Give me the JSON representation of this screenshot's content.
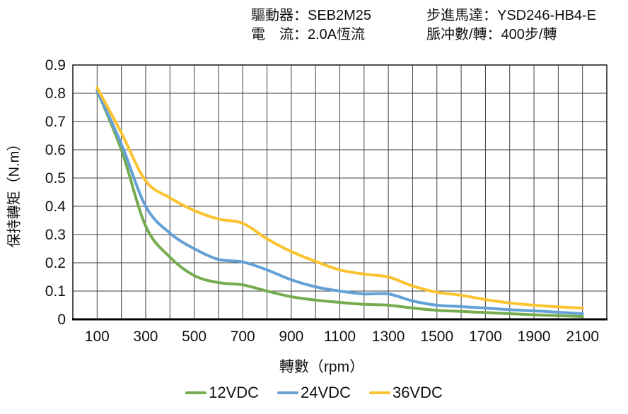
{
  "header": {
    "left_column": [
      {
        "label": "驅動器：",
        "value": "SEB2M25"
      },
      {
        "label": "電　流：",
        "value": "2.0A恆流"
      }
    ],
    "right_column": [
      {
        "label": "步進馬達：",
        "value": "YSD246-HB4-E"
      },
      {
        "label": "脈冲數/轉：",
        "value": "400步/轉"
      }
    ]
  },
  "chart_data": {
    "type": "line",
    "title": "",
    "xlabel": "轉數（rpm）",
    "ylabel": "保持轉矩（N.m）",
    "x": [
      100,
      200,
      300,
      400,
      500,
      600,
      700,
      800,
      900,
      1000,
      1100,
      1200,
      1300,
      1400,
      1500,
      1600,
      1700,
      1800,
      1900,
      2000,
      2100
    ],
    "series": [
      {
        "name": "12VDC",
        "color": "#76AB4F",
        "values": [
          0.81,
          0.6,
          0.33,
          0.22,
          0.155,
          0.13,
          0.122,
          0.1,
          0.08,
          0.068,
          0.06,
          0.053,
          0.05,
          0.04,
          0.032,
          0.028,
          0.024,
          0.02,
          0.016,
          0.013,
          0.01
        ]
      },
      {
        "name": "24VDC",
        "color": "#63A0D6",
        "values": [
          0.81,
          0.62,
          0.4,
          0.305,
          0.25,
          0.212,
          0.203,
          0.175,
          0.14,
          0.115,
          0.1,
          0.09,
          0.09,
          0.065,
          0.05,
          0.045,
          0.04,
          0.034,
          0.03,
          0.025,
          0.02
        ]
      },
      {
        "name": "36VDC",
        "color": "#FBC330",
        "values": [
          0.82,
          0.66,
          0.49,
          0.43,
          0.385,
          0.355,
          0.34,
          0.285,
          0.24,
          0.205,
          0.175,
          0.16,
          0.15,
          0.118,
          0.096,
          0.085,
          0.07,
          0.058,
          0.05,
          0.044,
          0.04
        ]
      }
    ],
    "xlim": [
      0,
      2200
    ],
    "ylim": [
      0,
      0.9
    ],
    "xticks": [
      100,
      300,
      500,
      700,
      900,
      1100,
      1300,
      1500,
      1700,
      1900,
      2100
    ],
    "yticks": [
      "0",
      "0.1",
      "0.2",
      "0.3",
      "0.4",
      "0.5",
      "0.6",
      "0.7",
      "0.8",
      "0.9"
    ],
    "grid": {
      "x_step_rpm": 100,
      "y_step": 0.1,
      "color": "#3F3F3F",
      "border_color": "#262626"
    },
    "legend_position": "bottom"
  }
}
